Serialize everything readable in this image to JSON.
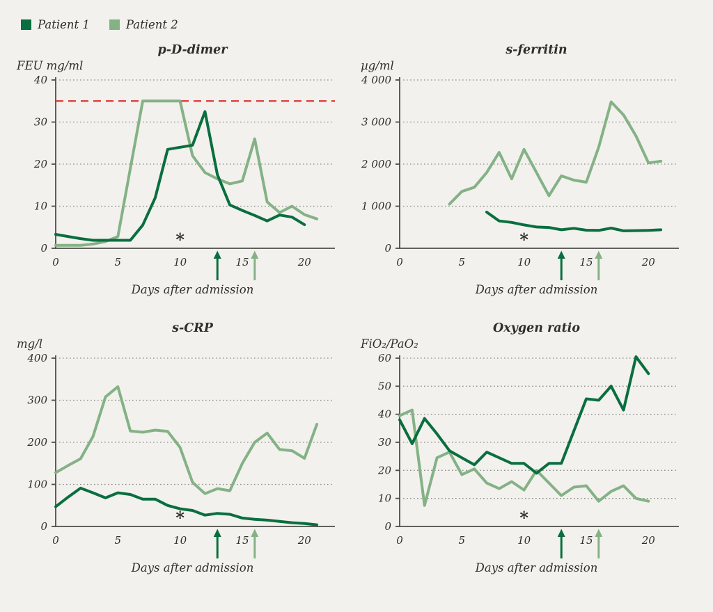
{
  "colors": {
    "background": "#f2f1ee",
    "patient1": "#0a6e3e",
    "patient2": "#84b285",
    "axis": "#4c4c48",
    "grid": "#8b8b85",
    "text": "#2e2e2a",
    "threshold_red": "#dc372e"
  },
  "legend": {
    "patient1": "Patient 1",
    "patient2": "Patient 2"
  },
  "chart_data": [
    {
      "type": "line",
      "title": "p-D-dimer",
      "ylabel": "FEU mg/ml",
      "xlabel": "Days after admission",
      "ylim": [
        0,
        40
      ],
      "xlim": [
        0,
        22
      ],
      "yticks": [
        0,
        10,
        20,
        30,
        40
      ],
      "ytick_labels": [
        "0",
        "10",
        "20",
        "30",
        "40"
      ],
      "xticks": [
        0,
        5,
        10,
        15,
        20
      ],
      "grid": "dotted-horizontal",
      "threshold": {
        "value": 35,
        "color": "#dc372e",
        "style": "dashed"
      },
      "annotations": {
        "asterisk_day": 10,
        "arrow_patient1_day": 13,
        "arrow_patient2_day": 16
      },
      "series": [
        {
          "name": "Patient 1",
          "color": "#0a6e3e",
          "points": [
            [
              0,
              3.3
            ],
            [
              1,
              2.8
            ],
            [
              2,
              2.3
            ],
            [
              3,
              1.9
            ],
            [
              4,
              1.9
            ],
            [
              5,
              1.9
            ],
            [
              6,
              1.9
            ],
            [
              7,
              5.5
            ],
            [
              8,
              12
            ],
            [
              9,
              23.5
            ],
            [
              10,
              24
            ],
            [
              11,
              24.5
            ],
            [
              12,
              32.5
            ],
            [
              13,
              17.5
            ],
            [
              14,
              10.3
            ],
            [
              15,
              9
            ],
            [
              16,
              7.8
            ],
            [
              17,
              6.5
            ],
            [
              18,
              7.9
            ],
            [
              19,
              7.4
            ],
            [
              20,
              5.6
            ]
          ]
        },
        {
          "name": "Patient 2",
          "color": "#84b285",
          "points": [
            [
              0,
              0.7
            ],
            [
              1,
              0.7
            ],
            [
              2,
              0.7
            ],
            [
              3,
              1
            ],
            [
              4,
              1.6
            ],
            [
              5,
              2.8
            ],
            [
              6,
              19
            ],
            [
              7,
              35
            ],
            [
              8,
              35
            ],
            [
              9,
              35
            ],
            [
              10,
              35
            ],
            [
              11,
              22
            ],
            [
              12,
              18
            ],
            [
              13,
              16.5
            ],
            [
              14,
              15.3
            ],
            [
              15,
              16
            ],
            [
              16,
              26
            ],
            [
              17,
              11
            ],
            [
              18,
              8.5
            ],
            [
              19,
              10
            ],
            [
              20,
              8
            ],
            [
              21,
              7
            ]
          ]
        }
      ]
    },
    {
      "type": "line",
      "title": "s-ferritin",
      "ylabel": "µg/ml",
      "xlabel": "Days after admission",
      "ylim": [
        0,
        4000
      ],
      "xlim": [
        0,
        22
      ],
      "yticks": [
        0,
        1000,
        2000,
        3000,
        4000
      ],
      "ytick_labels": [
        "0",
        "1 000",
        "2 000",
        "3 000",
        "4 000"
      ],
      "xticks": [
        0,
        5,
        10,
        15,
        20
      ],
      "grid": "dotted-horizontal",
      "threshold": null,
      "annotations": {
        "asterisk_day": 10,
        "arrow_patient1_day": 13,
        "arrow_patient2_day": 16
      },
      "series": [
        {
          "name": "Patient 1",
          "color": "#0a6e3e",
          "points": [
            [
              7,
              860
            ],
            [
              8,
              650
            ],
            [
              9,
              615
            ],
            [
              10,
              555
            ],
            [
              11,
              505
            ],
            [
              12,
              495
            ],
            [
              13,
              440
            ],
            [
              14,
              475
            ],
            [
              15,
              430
            ],
            [
              16,
              425
            ],
            [
              17,
              480
            ],
            [
              18,
              415
            ],
            [
              19,
              420
            ],
            [
              20,
              425
            ],
            [
              21,
              440
            ]
          ]
        },
        {
          "name": "Patient 2",
          "color": "#84b285",
          "points": [
            [
              4,
              1050
            ],
            [
              5,
              1350
            ],
            [
              6,
              1450
            ],
            [
              7,
              1800
            ],
            [
              8,
              2280
            ],
            [
              9,
              1650
            ],
            [
              10,
              2350
            ],
            [
              11,
              1800
            ],
            [
              12,
              1250
            ],
            [
              13,
              1720
            ],
            [
              14,
              1620
            ],
            [
              15,
              1570
            ],
            [
              16,
              2400
            ],
            [
              17,
              3480
            ],
            [
              18,
              3170
            ],
            [
              19,
              2670
            ],
            [
              20,
              2030
            ],
            [
              21,
              2070
            ]
          ]
        }
      ]
    },
    {
      "type": "line",
      "title": "s-CRP",
      "ylabel": "mg/l",
      "xlabel": "Days after admission",
      "ylim": [
        0,
        400
      ],
      "xlim": [
        0,
        22
      ],
      "yticks": [
        0,
        100,
        200,
        300,
        400
      ],
      "ytick_labels": [
        "0",
        "100",
        "200",
        "300",
        "400"
      ],
      "xticks": [
        0,
        5,
        10,
        15,
        20
      ],
      "grid": "dotted-horizontal",
      "threshold": null,
      "annotations": {
        "asterisk_day": 10,
        "arrow_patient1_day": 13,
        "arrow_patient2_day": 16
      },
      "series": [
        {
          "name": "Patient 1",
          "color": "#0a6e3e",
          "points": [
            [
              0,
              47
            ],
            [
              1,
              70
            ],
            [
              2,
              91
            ],
            [
              3,
              80
            ],
            [
              4,
              68
            ],
            [
              5,
              80
            ],
            [
              6,
              76
            ],
            [
              7,
              65
            ],
            [
              8,
              65
            ],
            [
              9,
              50
            ],
            [
              10,
              42
            ],
            [
              11,
              38
            ],
            [
              12,
              27
            ],
            [
              13,
              31
            ],
            [
              14,
              29
            ],
            [
              15,
              20
            ],
            [
              16,
              17
            ],
            [
              17,
              15
            ],
            [
              18,
              12
            ],
            [
              19,
              9
            ],
            [
              20,
              7
            ],
            [
              21,
              4
            ]
          ]
        },
        {
          "name": "Patient 2",
          "color": "#84b285",
          "points": [
            [
              0,
              128
            ],
            [
              1,
              145
            ],
            [
              2,
              161
            ],
            [
              3,
              214
            ],
            [
              4,
              308
            ],
            [
              5,
              332
            ],
            [
              6,
              227
            ],
            [
              7,
              224
            ],
            [
              8,
              229
            ],
            [
              9,
              226
            ],
            [
              10,
              188
            ],
            [
              11,
              105
            ],
            [
              12,
              78
            ],
            [
              13,
              90
            ],
            [
              14,
              85
            ],
            [
              15,
              150
            ],
            [
              16,
              200
            ],
            [
              17,
              222
            ],
            [
              18,
              183
            ],
            [
              19,
              180
            ],
            [
              20,
              162
            ],
            [
              21,
              243
            ]
          ]
        }
      ]
    },
    {
      "type": "line",
      "title": "Oxygen ratio",
      "ylabel": "FiO₂/PaO₂",
      "xlabel": "Days after admission",
      "ylim": [
        0,
        60
      ],
      "xlim": [
        0,
        22
      ],
      "yticks": [
        0,
        10,
        20,
        30,
        40,
        50,
        60
      ],
      "ytick_labels": [
        "0",
        "10",
        "20",
        "30",
        "40",
        "50",
        "60"
      ],
      "xticks": [
        0,
        5,
        10,
        15,
        20
      ],
      "grid": "dotted-horizontal",
      "threshold": null,
      "annotations": {
        "asterisk_day": 10,
        "arrow_patient1_day": 13,
        "arrow_patient2_day": 16
      },
      "series": [
        {
          "name": "Patient 1",
          "color": "#0a6e3e",
          "points": [
            [
              0,
              38
            ],
            [
              1,
              29.5
            ],
            [
              2,
              38.5
            ],
            [
              3,
              33
            ],
            [
              4,
              27
            ],
            [
              5,
              24.5
            ],
            [
              6,
              22
            ],
            [
              7,
              26.5
            ],
            [
              8,
              24.5
            ],
            [
              9,
              22.5
            ],
            [
              10,
              22.5
            ],
            [
              11,
              19
            ],
            [
              12,
              22.5
            ],
            [
              13,
              22.5
            ],
            [
              14,
              34
            ],
            [
              15,
              45.5
            ],
            [
              16,
              45
            ],
            [
              17,
              50
            ],
            [
              18,
              41.5
            ],
            [
              19,
              60.5
            ],
            [
              20,
              54.5
            ]
          ]
        },
        {
          "name": "Patient 2",
          "color": "#84b285",
          "points": [
            [
              0,
              39.5
            ],
            [
              1,
              41.5
            ],
            [
              2,
              7.5
            ],
            [
              3,
              24.5
            ],
            [
              4,
              26.5
            ],
            [
              5,
              18.5
            ],
            [
              6,
              20.5
            ],
            [
              7,
              15.5
            ],
            [
              8,
              13.5
            ],
            [
              9,
              16
            ],
            [
              10,
              13
            ],
            [
              11,
              20
            ],
            [
              12,
              15.5
            ],
            [
              13,
              11
            ],
            [
              14,
              14
            ],
            [
              15,
              14.5
            ],
            [
              16,
              9
            ],
            [
              17,
              12.5
            ],
            [
              18,
              14.5
            ],
            [
              19,
              10
            ],
            [
              20,
              9
            ]
          ]
        }
      ]
    }
  ]
}
